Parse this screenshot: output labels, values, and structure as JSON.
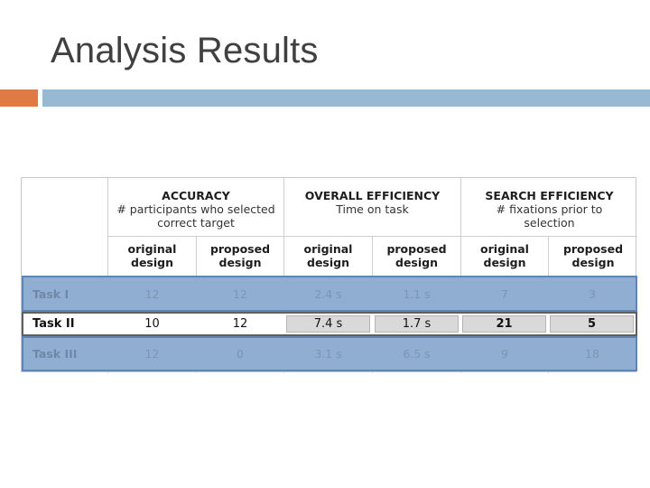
{
  "slide": {
    "title": "Analysis Results",
    "accent_orange": "#e07a44",
    "accent_blue": "#97b9d4"
  },
  "table": {
    "groups": [
      {
        "title": "ACCURACY",
        "subtitle": "# participants who selected correct target"
      },
      {
        "title": "OVERALL EFFICIENCY",
        "subtitle": "Time on task"
      },
      {
        "title": "SEARCH EFFICIENCY",
        "subtitle": "# fixations prior to selection"
      }
    ],
    "col_headers": [
      "original design",
      "proposed design",
      "original design",
      "proposed design",
      "original design",
      "proposed design"
    ],
    "rows": [
      {
        "label": "Task I",
        "values": [
          "12",
          "12",
          "2.4 s",
          "1.1 s",
          "7",
          "3"
        ],
        "state": "faded"
      },
      {
        "label": "Task II",
        "values": [
          "10",
          "12",
          "7.4 s",
          "1.7 s",
          "21",
          "5"
        ],
        "state": "highlighted"
      },
      {
        "label": "Task III",
        "values": [
          "12",
          "0",
          "3.1 s",
          "6.5 s",
          "9",
          "18"
        ],
        "state": "faded"
      }
    ]
  }
}
